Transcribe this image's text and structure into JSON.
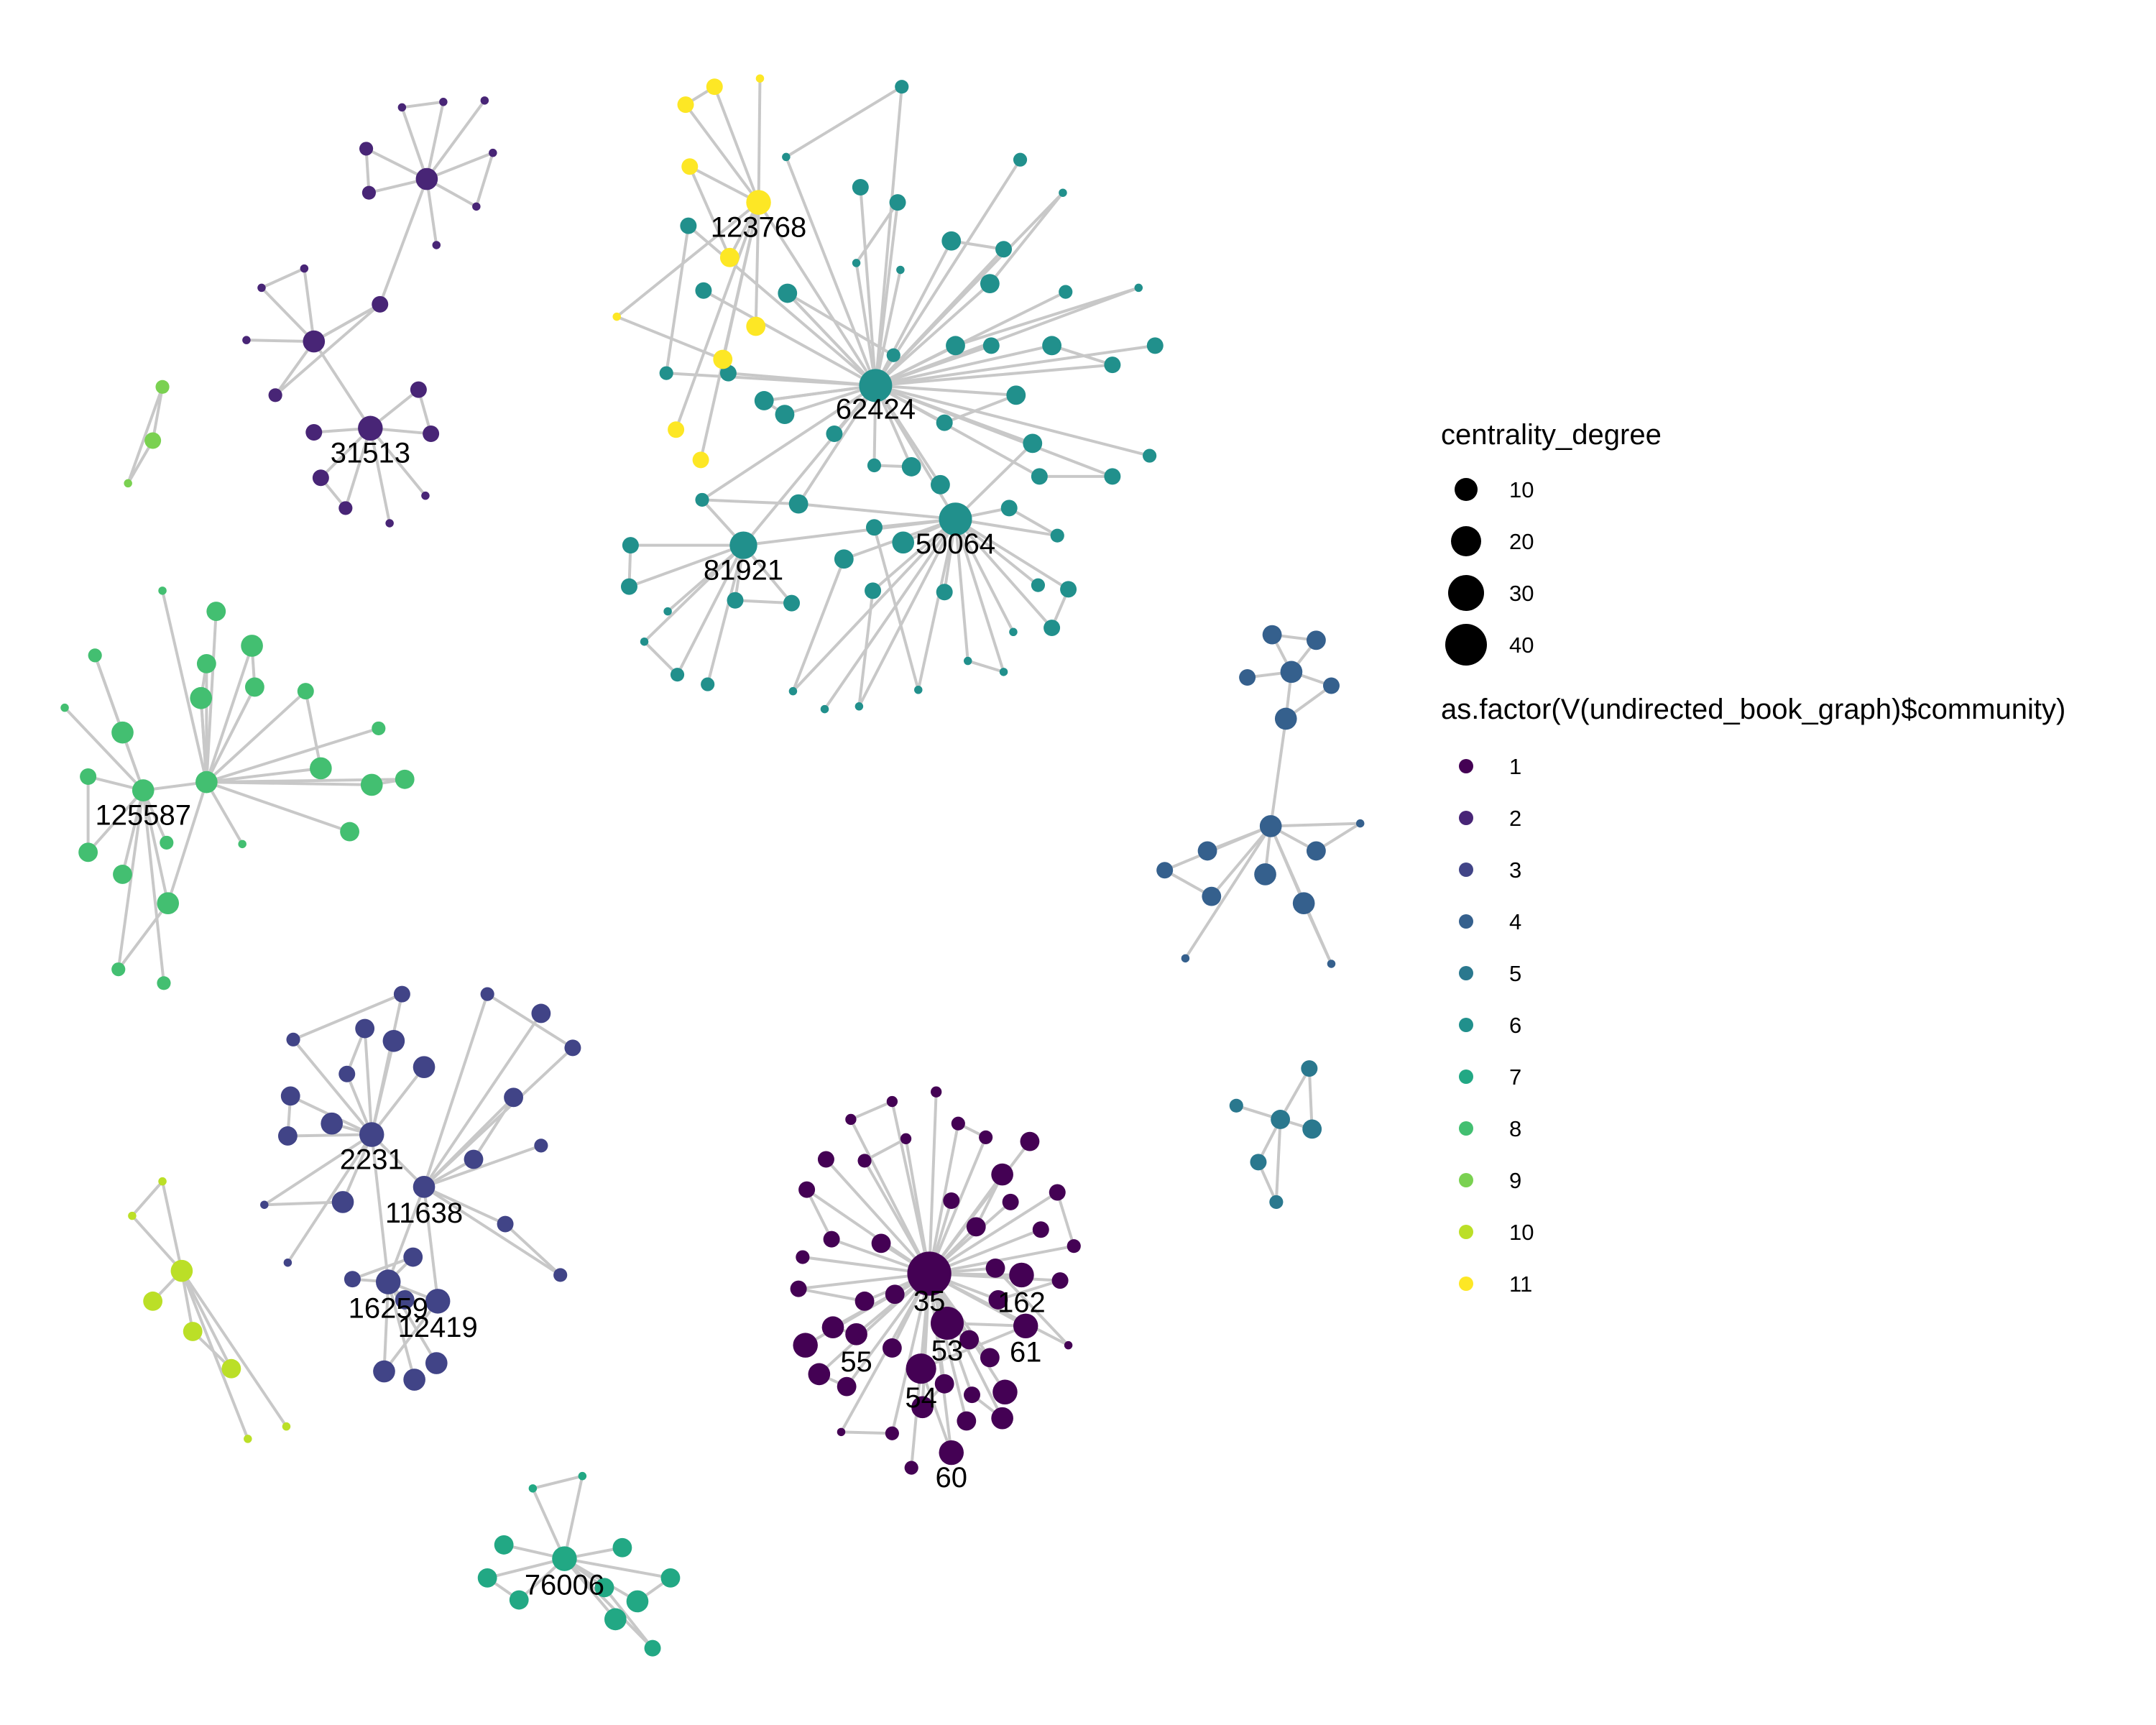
{
  "palette": {
    "1": "#440154",
    "2": "#482576",
    "3": "#414487",
    "4": "#35608D",
    "5": "#2A788E",
    "6": "#21908C",
    "7": "#22A884",
    "8": "#43BF71",
    "9": "#7AD151",
    "10": "#BBDF27",
    "11": "#FDE725",
    "edge": "#c8c8c8",
    "legend_key": "#000000"
  },
  "legend": {
    "size_title": "centrality_degree",
    "size_keys": [
      {
        "label": "10",
        "value": 10
      },
      {
        "label": "20",
        "value": 20
      },
      {
        "label": "30",
        "value": 30
      },
      {
        "label": "40",
        "value": 40
      }
    ],
    "color_title": "as.factor(V(undirected_book_graph)$community)",
    "color_keys": [
      "1",
      "2",
      "3",
      "4",
      "5",
      "6",
      "7",
      "8",
      "9",
      "10",
      "11"
    ]
  },
  "node_labels": [
    "123768",
    "31513",
    "62424",
    "81921",
    "50064",
    "125587",
    "2231",
    "11638",
    "16259",
    "12419",
    "35",
    "162",
    "53",
    "61",
    "55",
    "54",
    "60",
    "76006"
  ]
}
